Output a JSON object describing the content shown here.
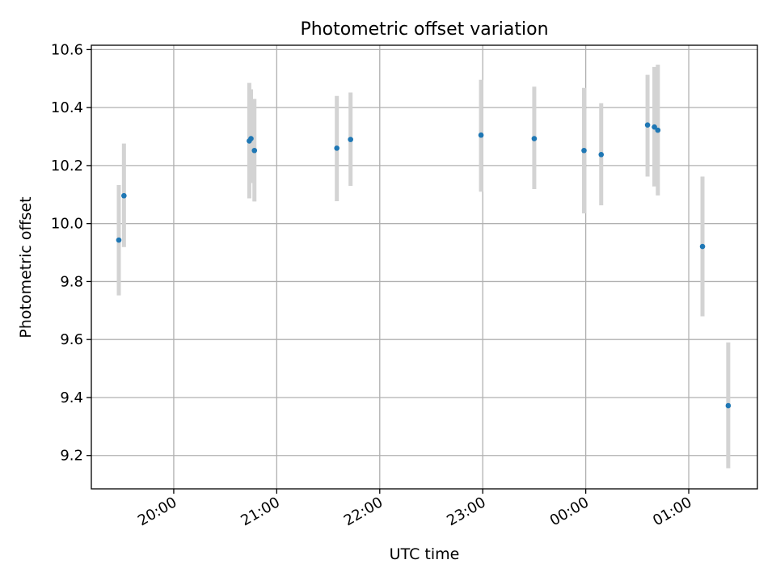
{
  "chart_data": {
    "type": "scatter",
    "title": "Photometric offset variation",
    "xlabel": "UTC time",
    "ylabel": "Photometric offset",
    "x_axis": {
      "kind": "time",
      "range": [
        "19:12",
        "01:40"
      ],
      "ticks": [
        "20:00",
        "21:00",
        "22:00",
        "23:00",
        "00:00",
        "01:00"
      ]
    },
    "y_axis": {
      "range": [
        9.085,
        10.615
      ],
      "ticks": [
        9.2,
        9.4,
        9.6,
        9.8,
        10.0,
        10.2,
        10.4,
        10.6
      ],
      "tick_labels": [
        "9.2",
        "9.4",
        "9.6",
        "9.8",
        "10.0",
        "10.2",
        "10.4",
        "10.6"
      ]
    },
    "grid": true,
    "colors": {
      "points": "#1f77b4",
      "error_bars": "#d3d3d3",
      "grid": "#b0b0b0"
    },
    "series": [
      {
        "points": [
          {
            "t": "19:28",
            "y": 9.943,
            "lo": 9.752,
            "hi": 10.133
          },
          {
            "t": "19:31",
            "y": 10.096,
            "lo": 9.919,
            "hi": 10.276
          },
          {
            "t": "20:44",
            "y": 10.285,
            "lo": 10.087,
            "hi": 10.485
          },
          {
            "t": "20:45",
            "y": 10.293,
            "lo": 10.14,
            "hi": 10.463
          },
          {
            "t": "20:47",
            "y": 10.252,
            "lo": 10.076,
            "hi": 10.43
          },
          {
            "t": "21:35",
            "y": 10.26,
            "lo": 10.077,
            "hi": 10.44
          },
          {
            "t": "21:43",
            "y": 10.29,
            "lo": 10.13,
            "hi": 10.452
          },
          {
            "t": "22:59",
            "y": 10.305,
            "lo": 10.11,
            "hi": 10.496
          },
          {
            "t": "23:30",
            "y": 10.293,
            "lo": 10.119,
            "hi": 10.472
          },
          {
            "t": "23:59",
            "y": 10.252,
            "lo": 10.035,
            "hi": 10.468
          },
          {
            "t": "00:09",
            "y": 10.238,
            "lo": 10.063,
            "hi": 10.415
          },
          {
            "t": "00:36",
            "y": 10.34,
            "lo": 10.162,
            "hi": 10.513
          },
          {
            "t": "00:40",
            "y": 10.333,
            "lo": 10.128,
            "hi": 10.54
          },
          {
            "t": "00:42",
            "y": 10.322,
            "lo": 10.097,
            "hi": 10.548
          },
          {
            "t": "01:08",
            "y": 9.921,
            "lo": 9.68,
            "hi": 10.162
          },
          {
            "t": "01:23",
            "y": 9.372,
            "lo": 9.156,
            "hi": 9.59
          }
        ]
      }
    ]
  }
}
